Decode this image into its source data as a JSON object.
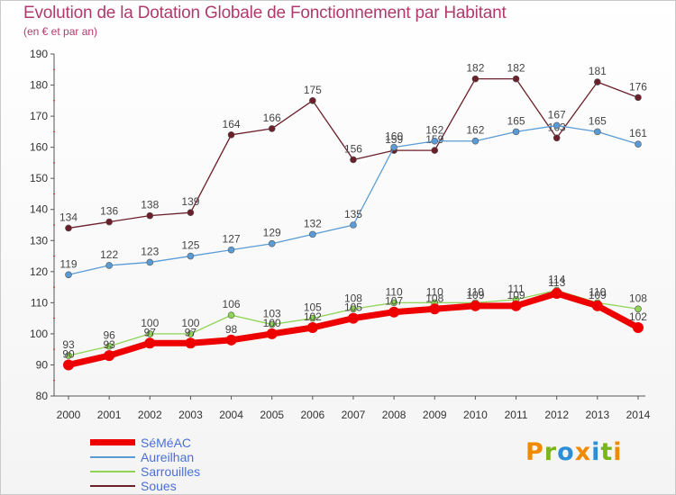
{
  "title": "Evolution de la Dotation Globale de Fonctionnement par Habitant",
  "subtitle": "(en € et par an)",
  "logo_text": "Proxiti",
  "chart_data": {
    "type": "line",
    "title": "Evolution de la Dotation Globale de Fonctionnement par Habitant",
    "subtitle": "(en € et par an)",
    "categories": [
      "2000",
      "2001",
      "2002",
      "2003",
      "2004",
      "2005",
      "2006",
      "2007",
      "2008",
      "2009",
      "2010",
      "2011",
      "2012",
      "2013",
      "2014"
    ],
    "ylim": [
      80,
      190
    ],
    "yticks": [
      80,
      90,
      100,
      110,
      120,
      130,
      140,
      150,
      160,
      170,
      180,
      190
    ],
    "grid": false,
    "legend_position": "bottom-left",
    "series": [
      {
        "name": "Soues",
        "color": "#6b1f2a",
        "values": [
          134,
          136,
          138,
          139,
          164,
          166,
          175,
          156,
          159,
          159,
          182,
          182,
          163,
          181,
          176
        ]
      },
      {
        "name": "Aureilhan",
        "color": "#5a9bd5",
        "values": [
          119,
          122,
          123,
          125,
          127,
          129,
          132,
          135,
          160,
          162,
          162,
          165,
          167,
          165,
          161
        ]
      },
      {
        "name": "Sarrouilles",
        "color": "#8fd454",
        "values": [
          93,
          96,
          100,
          100,
          106,
          103,
          105,
          108,
          110,
          110,
          110,
          111,
          114,
          110,
          108
        ]
      },
      {
        "name": "SéMéAC",
        "color": "#ee0000",
        "values": [
          90,
          93,
          97,
          97,
          98,
          100,
          102,
          105,
          107,
          108,
          109,
          109,
          113,
          109,
          102
        ]
      }
    ],
    "legend": [
      "SéMéAC",
      "Aureilhan",
      "Sarrouilles",
      "Soues"
    ]
  }
}
